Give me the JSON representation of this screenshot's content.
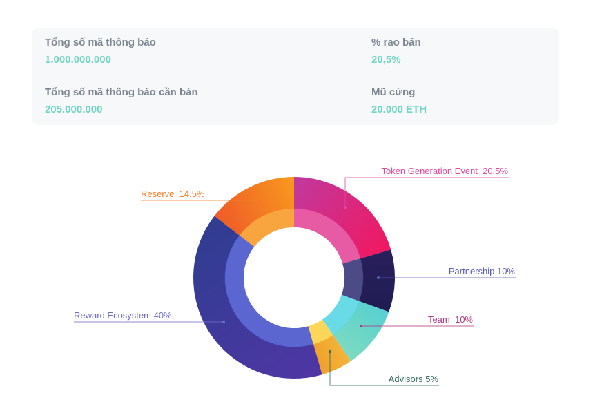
{
  "stats": {
    "total_tokens": {
      "label": "Tổng số mã thông báo",
      "value": "1.000.000.000"
    },
    "sale_percent": {
      "label": "% rao bán",
      "value": "20,5%"
    },
    "tokens_for_sale": {
      "label": "Tổng số mã thông báo cần bán",
      "value": "205.000.000"
    },
    "hard_cap": {
      "label": "Mũ cứng",
      "value": "20.000 ETH"
    }
  },
  "colors": {
    "value_text": "#6fd6bf",
    "label_text": "#7b8591"
  },
  "chart_data": {
    "type": "pie",
    "variant": "donut",
    "unit": "%",
    "slices": [
      {
        "name": "Token Generation Event",
        "value": 20.5,
        "label": "Token Generation Event  20.5%",
        "color_outer_a": "#bf3a9e",
        "color_outer_b": "#f2175f",
        "color_inner": "#e23e93",
        "label_color": "#e04aa0"
      },
      {
        "name": "Partnership",
        "value": 10,
        "label": "Partnership 10%",
        "color_outer_a": "#2a1f5c",
        "color_outer_b": "#1f1d52",
        "color_inner": "#2d2a72",
        "label_color": "#5a5bb8"
      },
      {
        "name": "Team",
        "value": 10,
        "label": "Team  10%",
        "color_outer_a": "#56d0d2",
        "color_outer_b": "#7fdbbf",
        "color_inner": "#4ed5e3",
        "label_color": "#b0377f"
      },
      {
        "name": "Advisors",
        "value": 5,
        "label": "Advisors 5%",
        "color_outer_a": "#f3b43a",
        "color_outer_b": "#f0a02a",
        "color_inner": "#fccf3c",
        "label_color": "#2e6b5c"
      },
      {
        "name": "Reward Ecosystem",
        "value": 40,
        "label": "Reward Ecosystem 40%",
        "color_outer_a": "#4f36a4",
        "color_outer_b": "#2f3d90",
        "color_inner": "#3f4bc8",
        "label_color": "#6f6cc8"
      },
      {
        "name": "Reserve",
        "value": 14.5,
        "label": "Reserve  14.5%",
        "color_outer_a": "#ef5a28",
        "color_outer_b": "#f89a1e",
        "color_inner": "#f7941d",
        "label_color": "#f0802a"
      }
    ]
  }
}
